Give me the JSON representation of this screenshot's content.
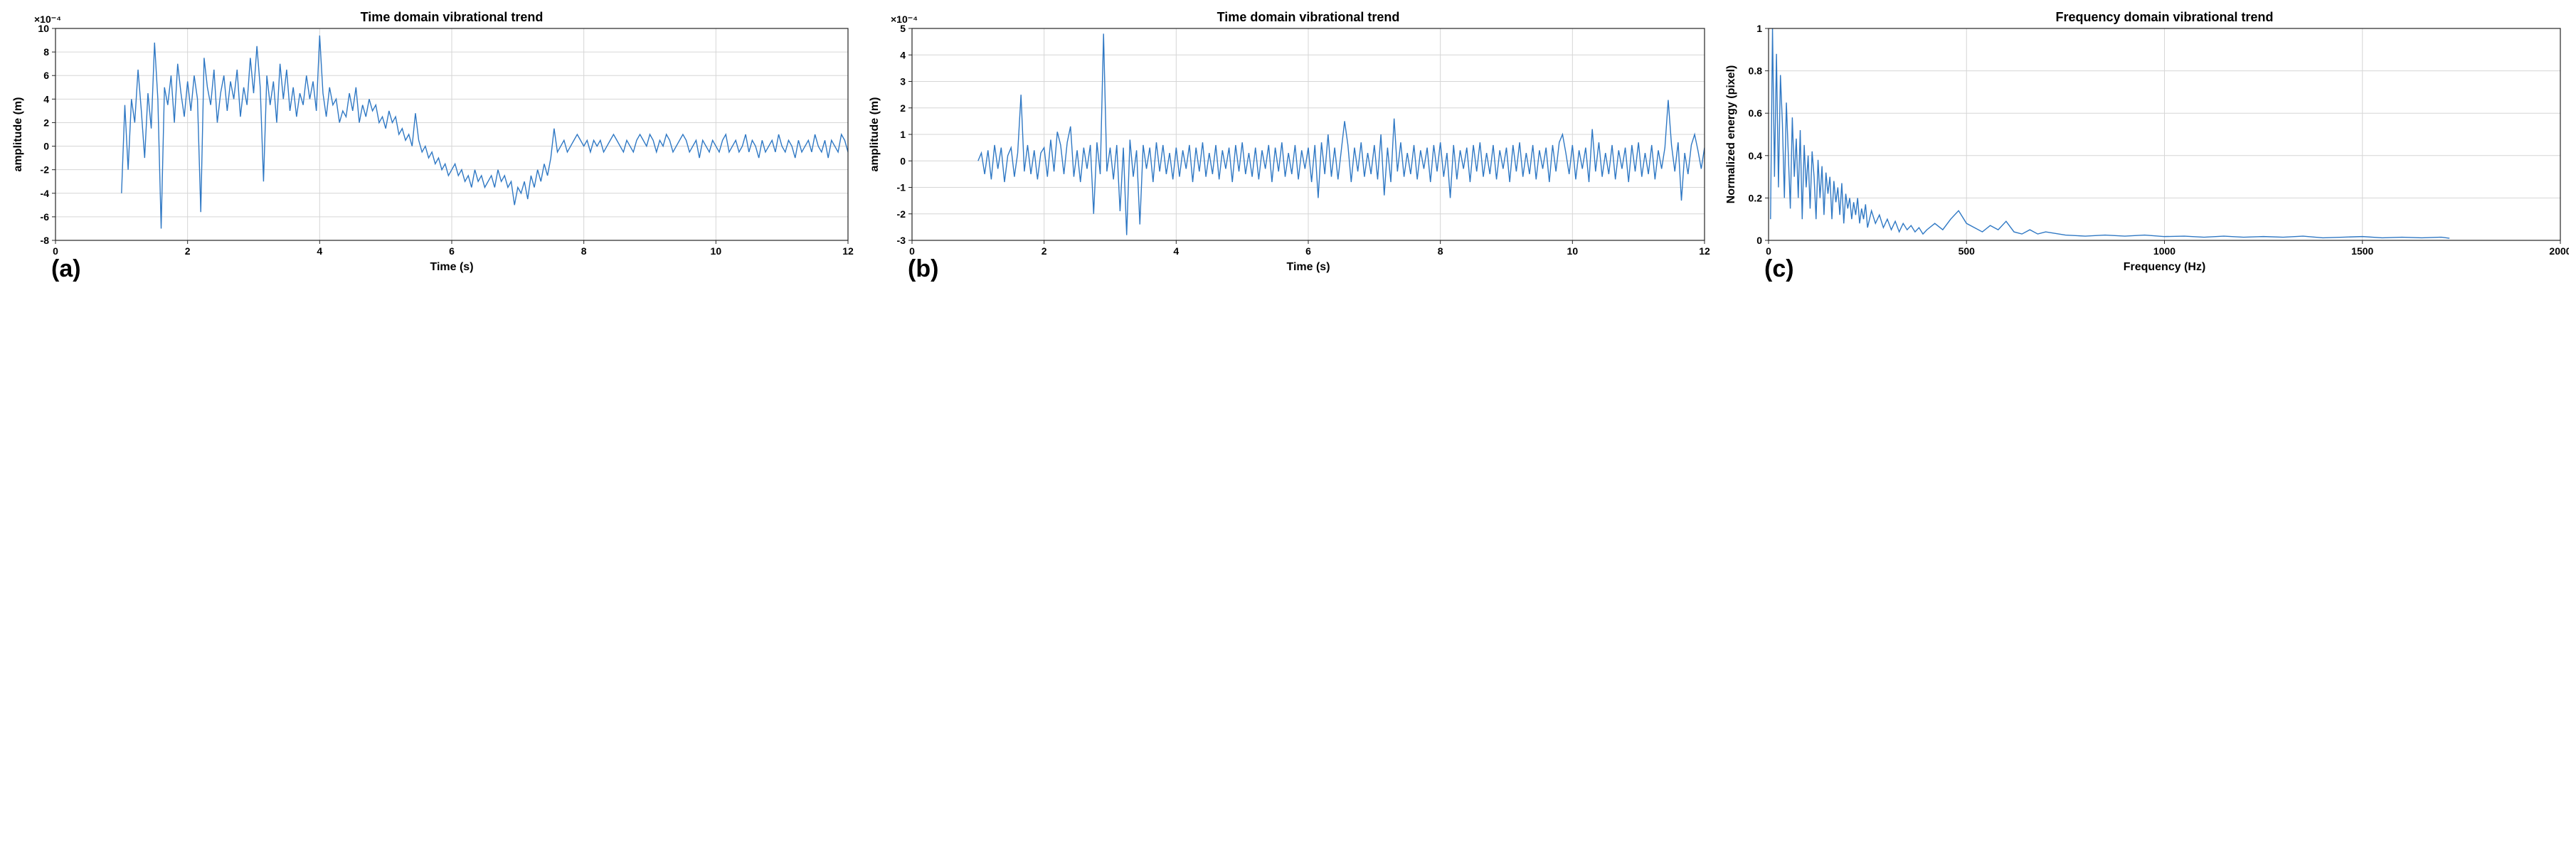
{
  "line_color": "#2f78c4",
  "axis_color": "#262626",
  "grid_color": "#d6d6d6",
  "background_color": "#ffffff",
  "title_fontsize": 18,
  "title_fontweight": "bold",
  "label_fontsize": 16,
  "label_fontweight": "bold",
  "tick_fontsize": 14,
  "tick_fontweight": "bold",
  "panel_letter_fontsize": 34,
  "line_width": 1.4,
  "grid_on": true,
  "charts": [
    {
      "id": "a",
      "type": "line",
      "title": "Time domain vibrational trend",
      "xlabel": "Time (s)",
      "ylabel": "amplitude (m)",
      "panel_letter": "(a)",
      "x_exponent_label": "",
      "y_exponent_label": "×10⁻⁴",
      "xlim": [
        0,
        12
      ],
      "ylim": [
        -8,
        10
      ],
      "xticks": [
        0,
        2,
        4,
        6,
        8,
        10,
        12
      ],
      "yticks": [
        -8,
        -6,
        -4,
        -2,
        0,
        2,
        4,
        6,
        8,
        10
      ],
      "series_x": [
        1.0,
        1.05,
        1.1,
        1.15,
        1.2,
        1.25,
        1.3,
        1.35,
        1.4,
        1.45,
        1.5,
        1.55,
        1.6,
        1.65,
        1.7,
        1.75,
        1.8,
        1.85,
        1.9,
        1.95,
        2.0,
        2.05,
        2.1,
        2.15,
        2.2,
        2.25,
        2.3,
        2.35,
        2.4,
        2.45,
        2.5,
        2.55,
        2.6,
        2.65,
        2.7,
        2.75,
        2.8,
        2.85,
        2.9,
        2.95,
        3.0,
        3.05,
        3.1,
        3.15,
        3.2,
        3.25,
        3.3,
        3.35,
        3.4,
        3.45,
        3.5,
        3.55,
        3.6,
        3.65,
        3.7,
        3.75,
        3.8,
        3.85,
        3.9,
        3.95,
        4.0,
        4.05,
        4.1,
        4.15,
        4.2,
        4.25,
        4.3,
        4.35,
        4.4,
        4.45,
        4.5,
        4.55,
        4.6,
        4.65,
        4.7,
        4.75,
        4.8,
        4.85,
        4.9,
        4.95,
        5.0,
        5.05,
        5.1,
        5.15,
        5.2,
        5.25,
        5.3,
        5.35,
        5.4,
        5.45,
        5.5,
        5.55,
        5.6,
        5.65,
        5.7,
        5.75,
        5.8,
        5.85,
        5.9,
        5.95,
        6.0,
        6.05,
        6.1,
        6.15,
        6.2,
        6.25,
        6.3,
        6.35,
        6.4,
        6.45,
        6.5,
        6.55,
        6.6,
        6.65,
        6.7,
        6.75,
        6.8,
        6.85,
        6.9,
        6.95,
        7.0,
        7.05,
        7.1,
        7.15,
        7.2,
        7.25,
        7.3,
        7.35,
        7.4,
        7.45,
        7.5,
        7.55,
        7.6,
        7.65,
        7.7,
        7.75,
        7.8,
        7.85,
        7.9,
        7.95,
        8.0,
        8.05,
        8.1,
        8.15,
        8.2,
        8.25,
        8.3,
        8.35,
        8.4,
        8.45,
        8.5,
        8.55,
        8.6,
        8.65,
        8.7,
        8.75,
        8.8,
        8.85,
        8.9,
        8.95,
        9.0,
        9.05,
        9.1,
        9.15,
        9.2,
        9.25,
        9.3,
        9.35,
        9.4,
        9.45,
        9.5,
        9.55,
        9.6,
        9.65,
        9.7,
        9.75,
        9.8,
        9.85,
        9.9,
        9.95,
        10.0,
        10.05,
        10.1,
        10.15,
        10.2,
        10.25,
        10.3,
        10.35,
        10.4,
        10.45,
        10.5,
        10.55,
        10.6,
        10.65,
        10.7,
        10.75,
        10.8,
        10.85,
        10.9,
        10.95,
        11.0,
        11.05,
        11.1,
        11.15,
        11.2,
        11.25,
        11.3,
        11.35,
        11.4,
        11.45,
        11.5,
        11.55,
        11.6,
        11.65,
        11.7,
        11.75,
        11.8,
        11.85,
        11.9,
        11.95,
        12.0,
        12.05,
        12.1,
        12.15,
        12.2
      ],
      "series_y": [
        -4.0,
        3.5,
        -2.0,
        4.0,
        2.0,
        6.5,
        3.0,
        -1.0,
        4.5,
        1.5,
        8.8,
        4.0,
        -7.0,
        5.0,
        3.5,
        6.0,
        2.0,
        7.0,
        4.5,
        2.5,
        5.5,
        3.0,
        6.0,
        4.0,
        -5.6,
        7.5,
        5.0,
        3.5,
        6.5,
        2.0,
        4.5,
        6.0,
        3.0,
        5.5,
        4.0,
        6.5,
        2.5,
        5.0,
        3.5,
        7.5,
        4.5,
        8.5,
        5.0,
        -3.0,
        6.0,
        3.5,
        5.5,
        2.0,
        7.0,
        4.0,
        6.5,
        3.0,
        5.0,
        2.5,
        4.5,
        3.5,
        6.0,
        4.0,
        5.5,
        3.0,
        9.4,
        4.5,
        2.5,
        5.0,
        3.5,
        4.0,
        2.0,
        3.0,
        2.5,
        4.5,
        3.0,
        5.0,
        2.0,
        3.5,
        2.5,
        4.0,
        3.0,
        3.5,
        2.0,
        2.5,
        1.5,
        3.0,
        2.0,
        2.5,
        1.0,
        1.5,
        0.5,
        1.0,
        0.0,
        2.8,
        0.5,
        -0.5,
        0.0,
        -1.0,
        -0.5,
        -1.5,
        -1.0,
        -2.0,
        -1.5,
        -2.5,
        -2.0,
        -1.5,
        -2.5,
        -2.0,
        -3.0,
        -2.5,
        -3.5,
        -2.0,
        -3.0,
        -2.5,
        -3.5,
        -3.0,
        -2.5,
        -3.5,
        -2.0,
        -3.0,
        -2.5,
        -3.5,
        -3.0,
        -5.0,
        -3.5,
        -4.0,
        -3.0,
        -4.5,
        -2.5,
        -3.5,
        -2.0,
        -3.0,
        -1.5,
        -2.5,
        -1.0,
        1.5,
        -0.5,
        0.0,
        0.5,
        -0.5,
        0.0,
        0.5,
        1.0,
        0.5,
        0.0,
        0.5,
        -0.5,
        0.5,
        0.0,
        0.5,
        -0.5,
        0.0,
        0.5,
        1.0,
        0.5,
        0.0,
        -0.5,
        0.5,
        0.0,
        -0.5,
        0.5,
        1.0,
        0.5,
        0.0,
        1.0,
        0.5,
        -0.5,
        0.5,
        0.0,
        1.0,
        0.5,
        -0.5,
        0.0,
        0.5,
        1.0,
        0.5,
        -0.5,
        0.0,
        0.5,
        -1.0,
        0.5,
        0.0,
        -0.5,
        0.5,
        0.0,
        -0.5,
        0.5,
        1.0,
        -0.5,
        0.0,
        0.5,
        -0.5,
        0.0,
        1.0,
        -0.5,
        0.5,
        0.0,
        -1.0,
        0.5,
        -0.5,
        0.0,
        0.5,
        -0.5,
        1.0,
        0.0,
        -0.5,
        0.5,
        0.0,
        -1.0,
        0.5,
        -0.5,
        0.0,
        0.5,
        -0.5,
        1.0,
        0.0,
        -0.5,
        0.5,
        -1.0,
        0.5,
        0.0,
        -0.5,
        1.0,
        0.5,
        -0.5,
        0.0,
        2.0,
        0.5,
        -0.5
      ]
    },
    {
      "id": "b",
      "type": "line",
      "title": "Time domain vibrational trend",
      "xlabel": "Time (s)",
      "ylabel": "amplitude (m)",
      "panel_letter": "(b)",
      "x_exponent_label": "",
      "y_exponent_label": "×10⁻⁴",
      "xlim": [
        0,
        12
      ],
      "ylim": [
        -3,
        5
      ],
      "xticks": [
        0,
        2,
        4,
        6,
        8,
        10,
        12
      ],
      "yticks": [
        -3,
        -2,
        -1,
        0,
        1,
        2,
        3,
        4,
        5
      ],
      "series_x": [
        1.0,
        1.05,
        1.1,
        1.15,
        1.2,
        1.25,
        1.3,
        1.35,
        1.4,
        1.45,
        1.5,
        1.55,
        1.6,
        1.65,
        1.7,
        1.75,
        1.8,
        1.85,
        1.9,
        1.95,
        2.0,
        2.05,
        2.1,
        2.15,
        2.2,
        2.25,
        2.3,
        2.35,
        2.4,
        2.45,
        2.5,
        2.55,
        2.6,
        2.65,
        2.7,
        2.75,
        2.8,
        2.85,
        2.9,
        2.95,
        3.0,
        3.05,
        3.1,
        3.15,
        3.2,
        3.25,
        3.3,
        3.35,
        3.4,
        3.45,
        3.5,
        3.55,
        3.6,
        3.65,
        3.7,
        3.75,
        3.8,
        3.85,
        3.9,
        3.95,
        4.0,
        4.05,
        4.1,
        4.15,
        4.2,
        4.25,
        4.3,
        4.35,
        4.4,
        4.45,
        4.5,
        4.55,
        4.6,
        4.65,
        4.7,
        4.75,
        4.8,
        4.85,
        4.9,
        4.95,
        5.0,
        5.05,
        5.1,
        5.15,
        5.2,
        5.25,
        5.3,
        5.35,
        5.4,
        5.45,
        5.5,
        5.55,
        5.6,
        5.65,
        5.7,
        5.75,
        5.8,
        5.85,
        5.9,
        5.95,
        6.0,
        6.05,
        6.1,
        6.15,
        6.2,
        6.25,
        6.3,
        6.35,
        6.4,
        6.45,
        6.5,
        6.55,
        6.6,
        6.65,
        6.7,
        6.75,
        6.8,
        6.85,
        6.9,
        6.95,
        7.0,
        7.05,
        7.1,
        7.15,
        7.2,
        7.25,
        7.3,
        7.35,
        7.4,
        7.45,
        7.5,
        7.55,
        7.6,
        7.65,
        7.7,
        7.75,
        7.8,
        7.85,
        7.9,
        7.95,
        8.0,
        8.05,
        8.1,
        8.15,
        8.2,
        8.25,
        8.3,
        8.35,
        8.4,
        8.45,
        8.5,
        8.55,
        8.6,
        8.65,
        8.7,
        8.75,
        8.8,
        8.85,
        8.9,
        8.95,
        9.0,
        9.05,
        9.1,
        9.15,
        9.2,
        9.25,
        9.3,
        9.35,
        9.4,
        9.45,
        9.5,
        9.55,
        9.6,
        9.65,
        9.7,
        9.75,
        9.8,
        9.85,
        9.9,
        9.95,
        10.0,
        10.05,
        10.1,
        10.15,
        10.2,
        10.25,
        10.3,
        10.35,
        10.4,
        10.45,
        10.5,
        10.55,
        10.6,
        10.65,
        10.7,
        10.75,
        10.8,
        10.85,
        10.9,
        10.95,
        11.0,
        11.05,
        11.1,
        11.15,
        11.2,
        11.25,
        11.3,
        11.35,
        11.4,
        11.45,
        11.5,
        11.55,
        11.6,
        11.65,
        11.7,
        11.75,
        11.8,
        11.85,
        11.9,
        11.95,
        12.0,
        12.05,
        12.1,
        12.15,
        12.2
      ],
      "series_y": [
        0.0,
        0.3,
        -0.5,
        0.4,
        -0.7,
        0.6,
        -0.3,
        0.5,
        -0.8,
        0.2,
        0.5,
        -0.6,
        0.3,
        2.5,
        -0.4,
        0.6,
        -0.5,
        0.4,
        -0.7,
        0.3,
        0.5,
        -0.6,
        0.8,
        -0.4,
        1.1,
        0.6,
        -0.5,
        0.7,
        1.3,
        -0.6,
        0.4,
        -0.8,
        0.5,
        -0.3,
        0.6,
        -2.0,
        0.7,
        -0.5,
        4.8,
        -0.4,
        0.5,
        -0.7,
        0.6,
        -1.9,
        0.5,
        -2.8,
        0.8,
        -0.6,
        0.4,
        -2.4,
        0.6,
        -0.3,
        0.5,
        -0.8,
        0.7,
        -0.4,
        0.6,
        -0.5,
        0.3,
        -0.7,
        0.5,
        -0.6,
        0.4,
        -0.3,
        0.6,
        -0.8,
        0.5,
        -0.4,
        0.7,
        -0.6,
        0.3,
        -0.5,
        0.6,
        -0.7,
        0.4,
        -0.3,
        0.5,
        -0.8,
        0.6,
        -0.4,
        0.7,
        -0.5,
        0.3,
        -0.6,
        0.5,
        -0.7,
        0.4,
        -0.3,
        0.6,
        -0.8,
        0.5,
        -0.4,
        0.7,
        -0.6,
        0.3,
        -0.5,
        0.6,
        -0.7,
        0.4,
        -0.3,
        0.5,
        -0.8,
        0.6,
        -1.4,
        0.7,
        -0.5,
        1.0,
        -0.6,
        0.5,
        -0.7,
        0.4,
        1.5,
        0.6,
        -0.8,
        0.5,
        -0.4,
        0.7,
        -0.6,
        0.3,
        -0.5,
        0.6,
        -0.7,
        1.0,
        -1.3,
        0.5,
        -0.8,
        1.6,
        -0.4,
        0.7,
        -0.6,
        0.3,
        -0.5,
        0.6,
        -0.7,
        0.4,
        -0.3,
        0.5,
        -0.8,
        0.6,
        -0.4,
        0.7,
        -0.6,
        0.3,
        -1.4,
        0.6,
        -0.7,
        0.4,
        -0.3,
        0.5,
        -0.8,
        0.6,
        -0.4,
        0.7,
        -0.6,
        0.3,
        -0.5,
        0.6,
        -0.7,
        0.4,
        -0.3,
        0.5,
        -0.8,
        0.6,
        -0.4,
        0.7,
        -0.6,
        0.3,
        -0.5,
        0.6,
        -0.7,
        0.4,
        -0.3,
        0.5,
        -0.8,
        0.6,
        -0.4,
        0.7,
        1.0,
        0.3,
        -0.5,
        0.6,
        -0.7,
        0.4,
        -0.3,
        0.5,
        -0.8,
        1.2,
        -0.4,
        0.7,
        -0.6,
        0.3,
        -0.5,
        0.6,
        -0.7,
        0.4,
        -0.3,
        0.5,
        -0.8,
        0.6,
        -0.4,
        0.7,
        -0.6,
        0.3,
        -0.5,
        0.6,
        -0.7,
        0.4,
        -0.3,
        0.5,
        2.3,
        0.6,
        -0.4,
        0.7,
        -1.5,
        0.3,
        -0.5,
        0.6,
        1.0,
        0.4,
        -0.3,
        0.5,
        -0.8,
        0.6,
        -0.4,
        1.0
      ]
    },
    {
      "id": "c",
      "type": "line",
      "title": "Frequency domain vibrational trend",
      "xlabel": "Frequency (Hz)",
      "ylabel": "Normalized energy (pixel)",
      "panel_letter": "(c)",
      "x_exponent_label": "",
      "y_exponent_label": "",
      "xlim": [
        0,
        2000
      ],
      "ylim": [
        0,
        1
      ],
      "xticks": [
        0,
        500,
        1000,
        1500,
        2000
      ],
      "yticks": [
        0,
        0.2,
        0.4,
        0.6,
        0.8,
        1
      ],
      "series_x": [
        5,
        10,
        15,
        20,
        25,
        30,
        35,
        40,
        45,
        50,
        55,
        60,
        65,
        70,
        75,
        80,
        85,
        90,
        95,
        100,
        105,
        110,
        115,
        120,
        125,
        130,
        135,
        140,
        145,
        150,
        155,
        160,
        165,
        170,
        175,
        180,
        185,
        190,
        195,
        200,
        205,
        210,
        215,
        220,
        225,
        230,
        235,
        240,
        245,
        250,
        260,
        270,
        280,
        290,
        300,
        310,
        320,
        330,
        340,
        350,
        360,
        370,
        380,
        390,
        400,
        420,
        440,
        460,
        480,
        500,
        520,
        540,
        560,
        580,
        600,
        620,
        640,
        660,
        680,
        700,
        750,
        800,
        850,
        900,
        950,
        1000,
        1050,
        1100,
        1150,
        1200,
        1250,
        1300,
        1350,
        1400,
        1450,
        1500,
        1550,
        1600,
        1650,
        1700,
        1720
      ],
      "series_y": [
        0.1,
        1.0,
        0.3,
        0.88,
        0.25,
        0.78,
        0.55,
        0.2,
        0.65,
        0.4,
        0.15,
        0.58,
        0.3,
        0.48,
        0.2,
        0.52,
        0.1,
        0.45,
        0.25,
        0.4,
        0.15,
        0.42,
        0.3,
        0.1,
        0.38,
        0.2,
        0.35,
        0.12,
        0.32,
        0.22,
        0.3,
        0.1,
        0.28,
        0.18,
        0.25,
        0.12,
        0.27,
        0.08,
        0.22,
        0.15,
        0.2,
        0.1,
        0.18,
        0.12,
        0.2,
        0.08,
        0.15,
        0.1,
        0.17,
        0.06,
        0.14,
        0.08,
        0.12,
        0.06,
        0.1,
        0.05,
        0.09,
        0.04,
        0.08,
        0.05,
        0.07,
        0.04,
        0.06,
        0.03,
        0.05,
        0.08,
        0.05,
        0.1,
        0.14,
        0.08,
        0.06,
        0.04,
        0.07,
        0.05,
        0.09,
        0.04,
        0.03,
        0.05,
        0.03,
        0.04,
        0.025,
        0.02,
        0.025,
        0.02,
        0.025,
        0.018,
        0.02,
        0.015,
        0.02,
        0.015,
        0.018,
        0.015,
        0.02,
        0.012,
        0.015,
        0.018,
        0.012,
        0.015,
        0.012,
        0.015,
        0.01
      ]
    }
  ]
}
